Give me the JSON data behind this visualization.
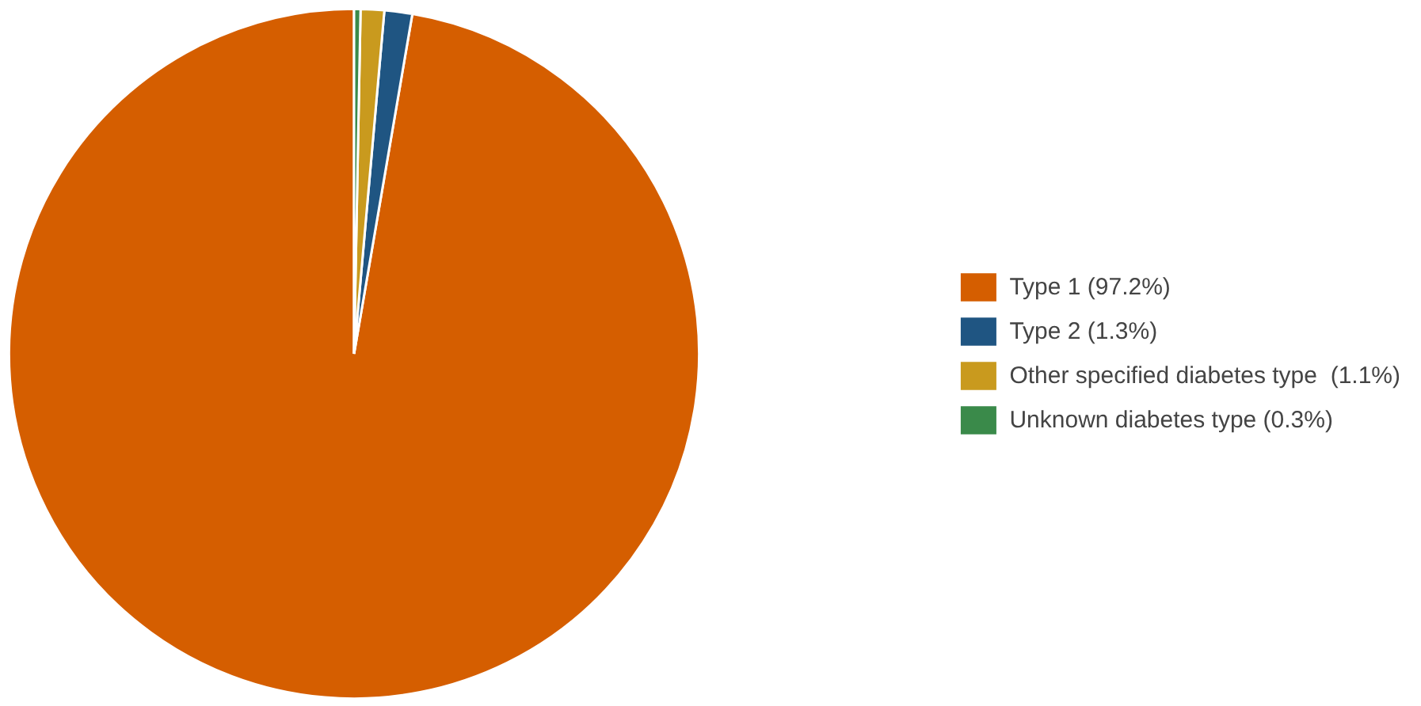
{
  "chart_data": {
    "type": "pie",
    "categories": [
      "Type 1 (97.2%)",
      "Type 2 (1.3%)",
      "Other specified diabetes type  (1.1%)",
      "Unknown diabetes type (0.3%)"
    ],
    "values": [
      97.2,
      1.3,
      1.1,
      0.3
    ],
    "colors": [
      "#d55e00",
      "#1f5582",
      "#c99a1e",
      "#3a8a4a"
    ],
    "legend": "right"
  }
}
